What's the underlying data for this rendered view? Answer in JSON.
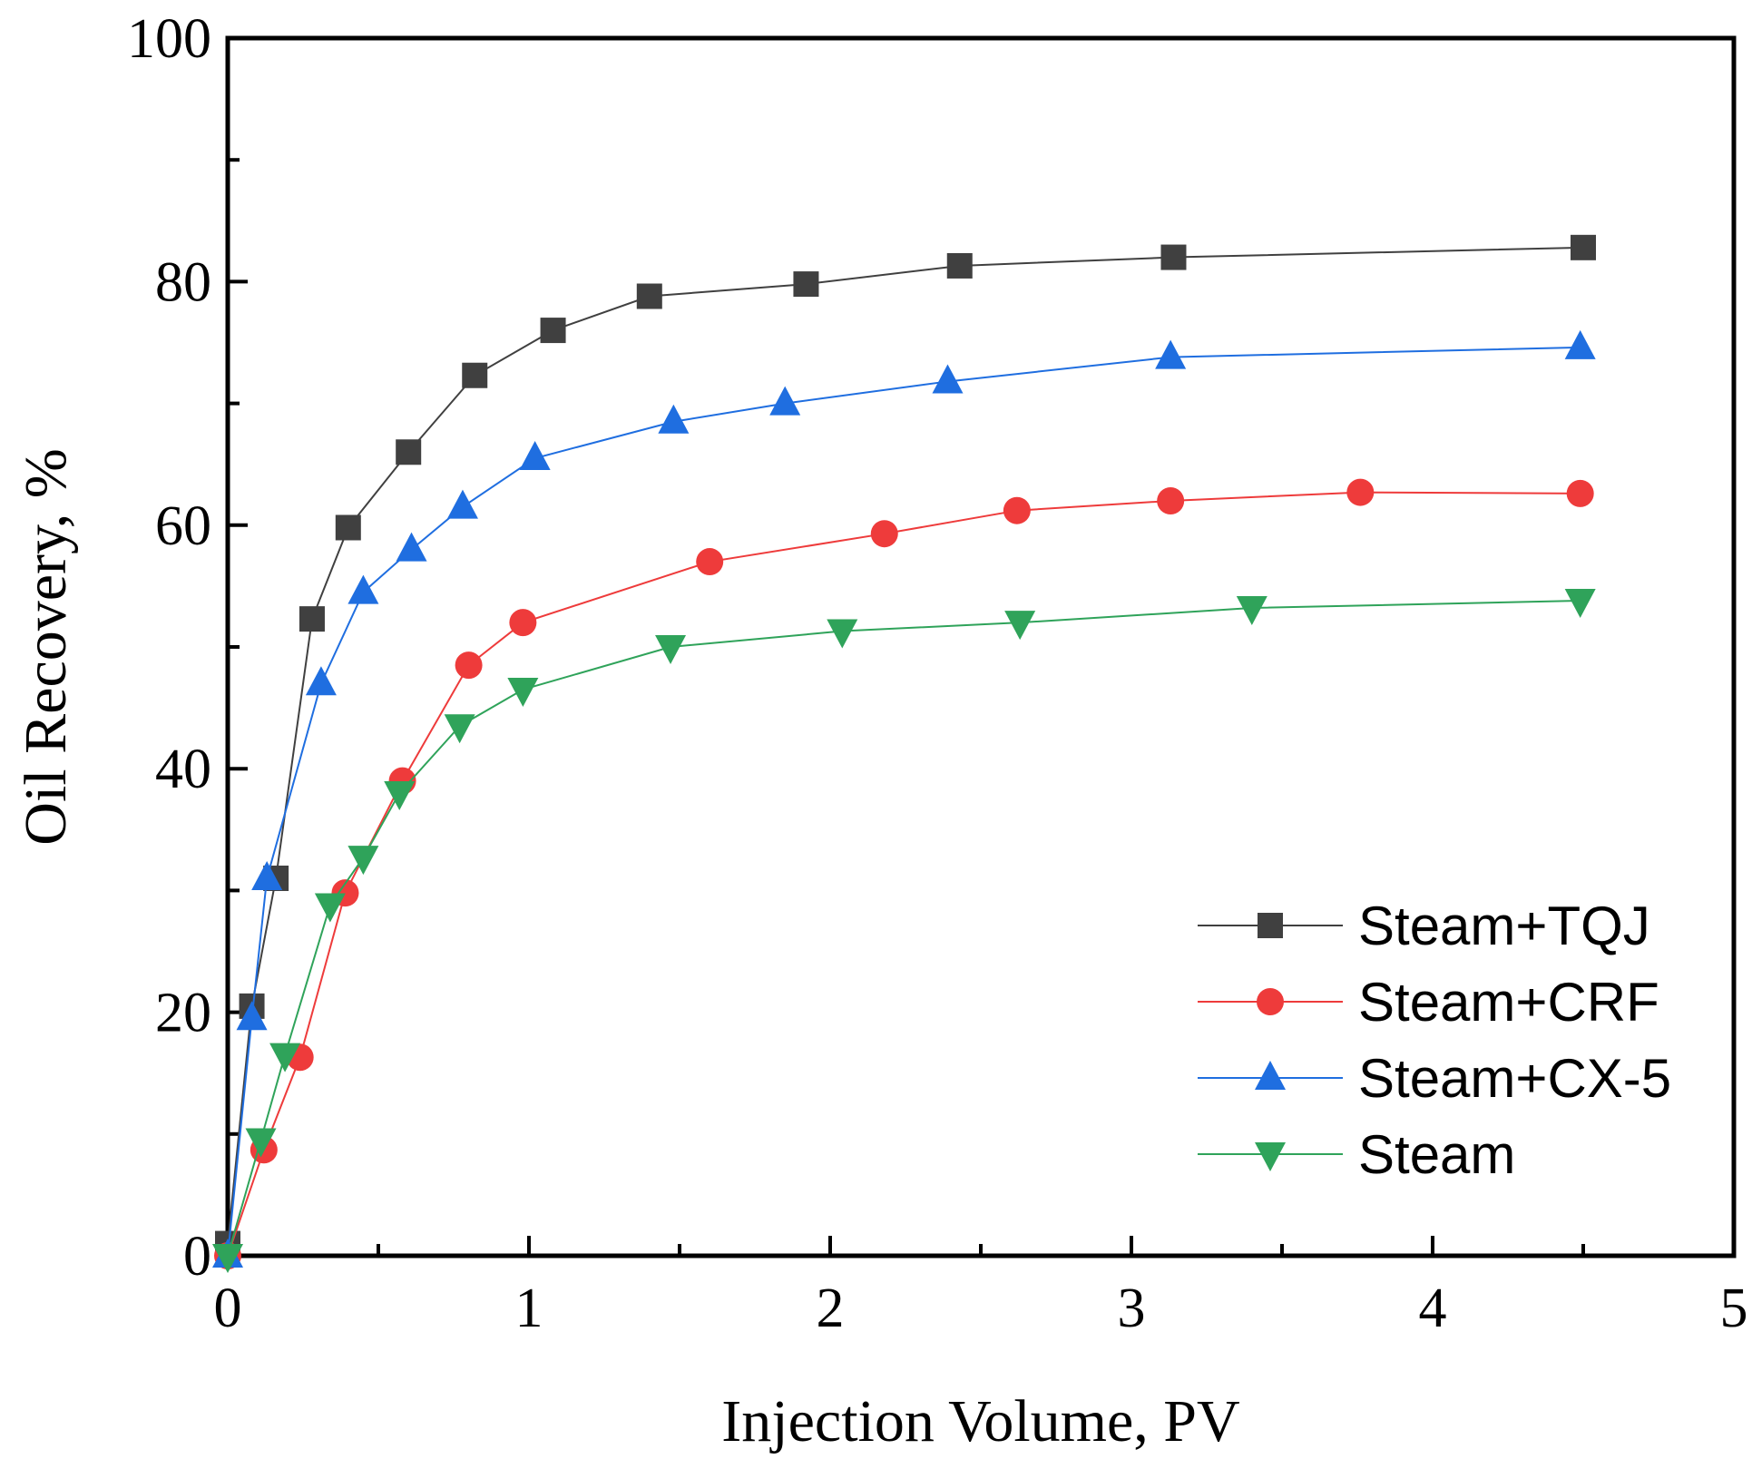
{
  "chart_data": {
    "type": "line",
    "title": "",
    "xlabel": "Injection Volume, PV",
    "ylabel": "Oil Recovery, %",
    "xlim": [
      0,
      5
    ],
    "ylim": [
      0,
      100
    ],
    "xticks": [
      0,
      1,
      2,
      3,
      4,
      5
    ],
    "xtick_labels": [
      "0",
      "1",
      "2",
      "3",
      "4",
      "5"
    ],
    "yticks": [
      0,
      20,
      40,
      60,
      80,
      100
    ],
    "ytick_labels": [
      "0",
      "20",
      "40",
      "60",
      "80",
      "100"
    ],
    "grid": false,
    "legend_position": "bottom-right",
    "series": [
      {
        "name": "Steam+TQJ",
        "color": "#404040",
        "marker": "square",
        "x": [
          0,
          0.08,
          0.16,
          0.28,
          0.4,
          0.6,
          0.82,
          1.08,
          1.4,
          1.92,
          2.43,
          3.14,
          4.5
        ],
        "y": [
          1,
          20.5,
          31,
          52.3,
          59.8,
          66,
          72.3,
          76,
          78.8,
          79.8,
          81.3,
          82,
          82.8
        ]
      },
      {
        "name": "Steam+CRF",
        "color": "#ee3b3b",
        "marker": "circle",
        "x": [
          0,
          0.12,
          0.24,
          0.39,
          0.58,
          0.8,
          0.98,
          1.6,
          2.18,
          2.62,
          3.13,
          3.76,
          4.49
        ],
        "y": [
          0,
          8.7,
          16.3,
          29.8,
          39,
          48.5,
          52,
          57,
          59.3,
          61.2,
          62,
          62.7,
          62.6
        ]
      },
      {
        "name": "Steam+CX-5",
        "color": "#1f6ee0",
        "marker": "triangle-up",
        "x": [
          0,
          0.08,
          0.13,
          0.31,
          0.45,
          0.61,
          0.78,
          1.02,
          1.48,
          1.85,
          2.39,
          3.13,
          4.49
        ],
        "y": [
          0,
          19.5,
          31,
          47,
          54.5,
          58,
          61.5,
          65.5,
          68.5,
          70,
          71.8,
          73.8,
          74.6
        ]
      },
      {
        "name": "Steam",
        "color": "#2fa35a",
        "marker": "triangle-down",
        "x": [
          0,
          0.11,
          0.19,
          0.34,
          0.45,
          0.57,
          0.77,
          0.98,
          1.47,
          2.04,
          2.63,
          3.4,
          4.49
        ],
        "y": [
          0,
          9.5,
          16.5,
          28.8,
          32.7,
          38,
          43.5,
          46.5,
          50,
          51.3,
          52,
          53.2,
          53.8
        ]
      }
    ]
  }
}
